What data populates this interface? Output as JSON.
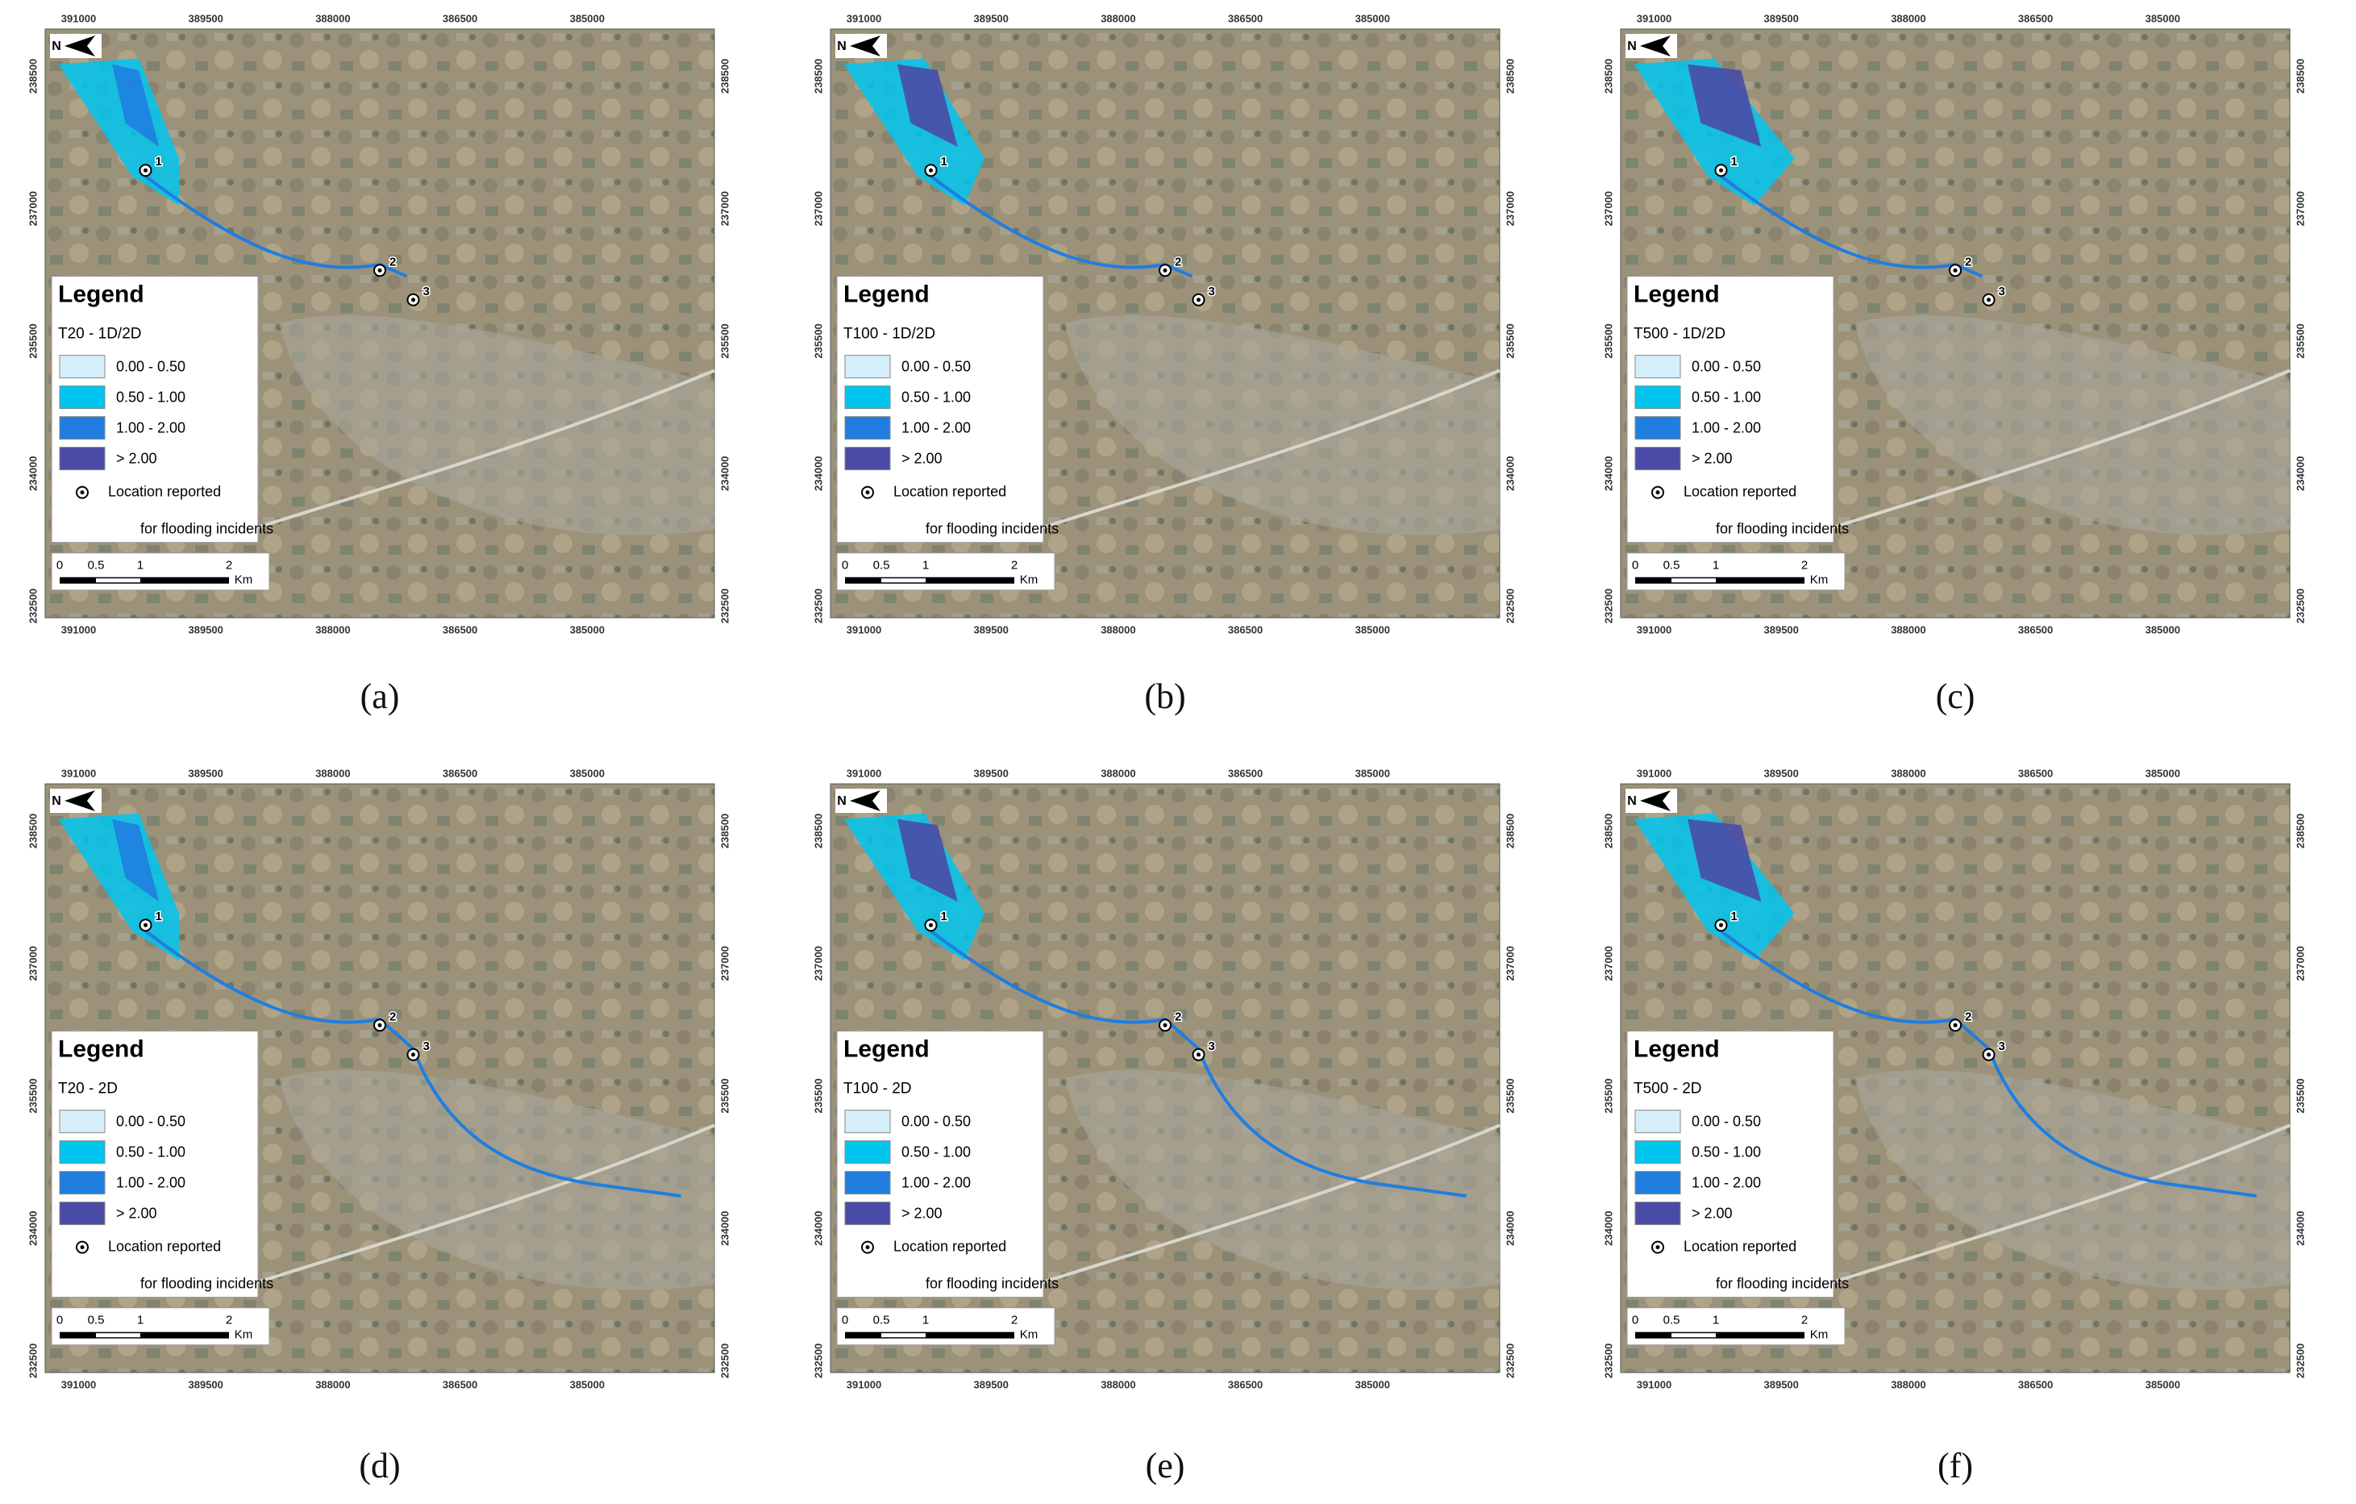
{
  "figure": {
    "x_ticks": [
      "391000",
      "389500",
      "388000",
      "386500",
      "385000"
    ],
    "y_ticks": [
      "238500",
      "237000",
      "235500",
      "234000",
      "232500"
    ],
    "north": "N",
    "legend_heading": "Legend",
    "classes": [
      {
        "label": "0.00 - 0.50",
        "color": "#d4eefa"
      },
      {
        "label": "0.50 - 1.00",
        "color": "#00c6ef"
      },
      {
        "label": "1.00 - 2.00",
        "color": "#1f7ee0"
      },
      {
        "label": "> 2.00",
        "color": "#4a4ba6"
      }
    ],
    "location_line1": "Location reported",
    "location_line2": "for flooding incidents",
    "scale_labels": [
      "0",
      "0.5",
      "1",
      "2",
      "Km"
    ],
    "points": [
      "1",
      "2",
      "3"
    ],
    "panels": [
      {
        "caption": "(a)",
        "legend_title": "T20 - 1D/2D"
      },
      {
        "caption": "(b)",
        "legend_title": "T100 - 1D/2D"
      },
      {
        "caption": "(c)",
        "legend_title": "T500 - 1D/2D"
      },
      {
        "caption": "(d)",
        "legend_title": "T20 - 2D"
      },
      {
        "caption": "(e)",
        "legend_title": "T100 - 2D"
      },
      {
        "caption": "(f)",
        "legend_title": "T500 - 2D"
      }
    ]
  }
}
